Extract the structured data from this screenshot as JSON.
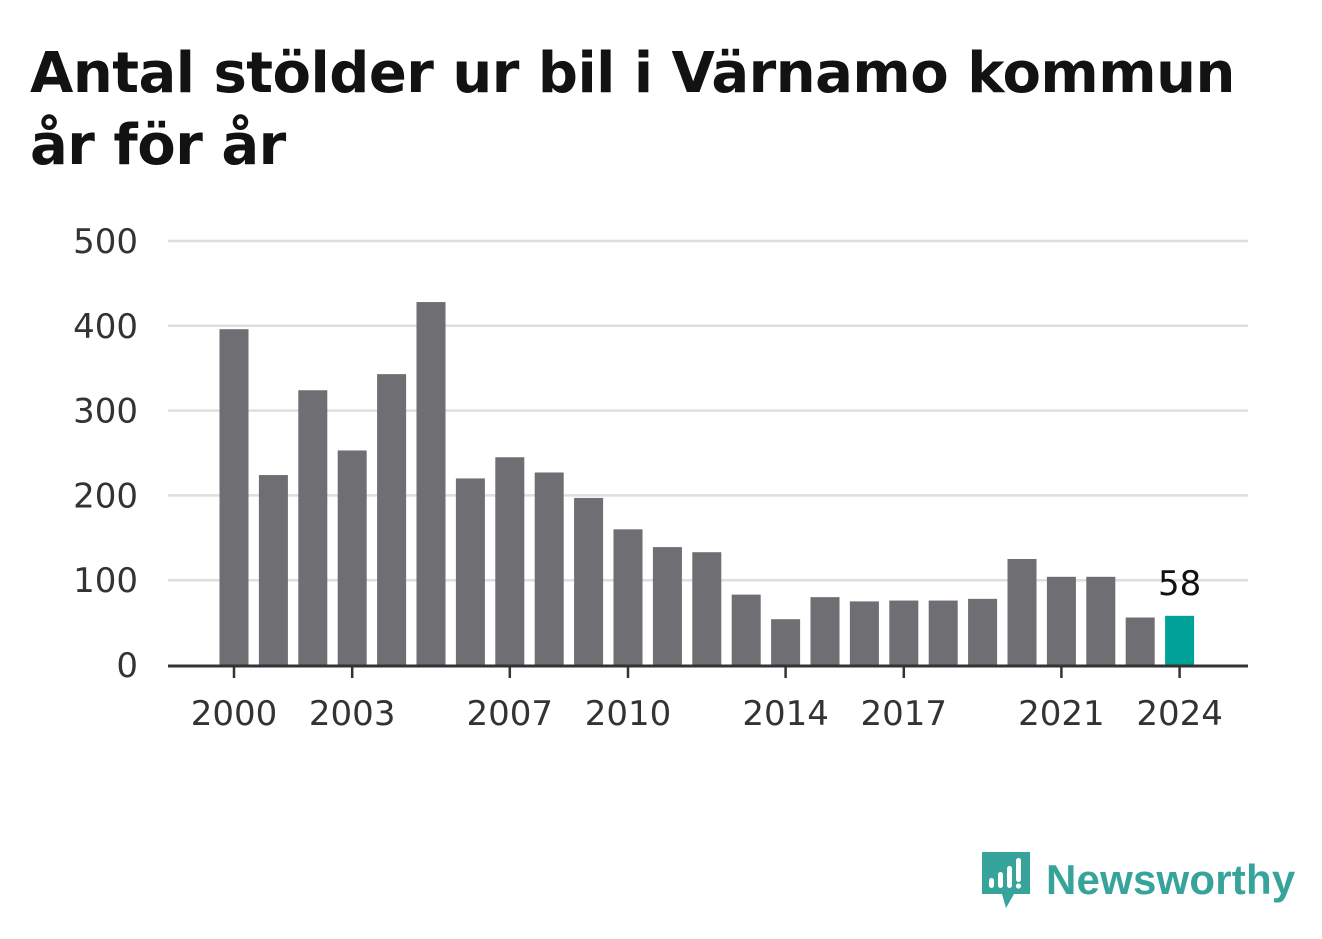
{
  "chart_data": {
    "type": "bar",
    "title_lines": [
      "Antal stölder ur bil i Värnamo kommun",
      "år för år"
    ],
    "categories": [
      2000,
      2001,
      2002,
      2003,
      2004,
      2005,
      2006,
      2007,
      2008,
      2009,
      2010,
      2011,
      2012,
      2013,
      2014,
      2015,
      2016,
      2017,
      2018,
      2019,
      2020,
      2021,
      2022,
      2023,
      2024
    ],
    "values": [
      396,
      224,
      324,
      253,
      343,
      428,
      220,
      245,
      227,
      197,
      160,
      139,
      133,
      83,
      54,
      80,
      75,
      76,
      76,
      78,
      125,
      104,
      104,
      56,
      58
    ],
    "x_tick_labels": [
      "2000",
      "2003",
      "2007",
      "2010",
      "2014",
      "2017",
      "2021",
      "2024"
    ],
    "y_ticks": [
      0,
      100,
      200,
      300,
      400,
      500
    ],
    "ylim": [
      0,
      500
    ],
    "highlight": {
      "category": 2024,
      "label": "58"
    },
    "xlabel": "",
    "ylabel": "",
    "grid": true,
    "colors": {
      "bar": "#6e6e73",
      "highlight": "#00a199",
      "grid": "#dedede",
      "axis": "#333333",
      "text": "#333333"
    }
  },
  "brand": {
    "name": "Newsworthy",
    "icon": "newsworthy-logo-icon",
    "color": "#36a49a"
  }
}
